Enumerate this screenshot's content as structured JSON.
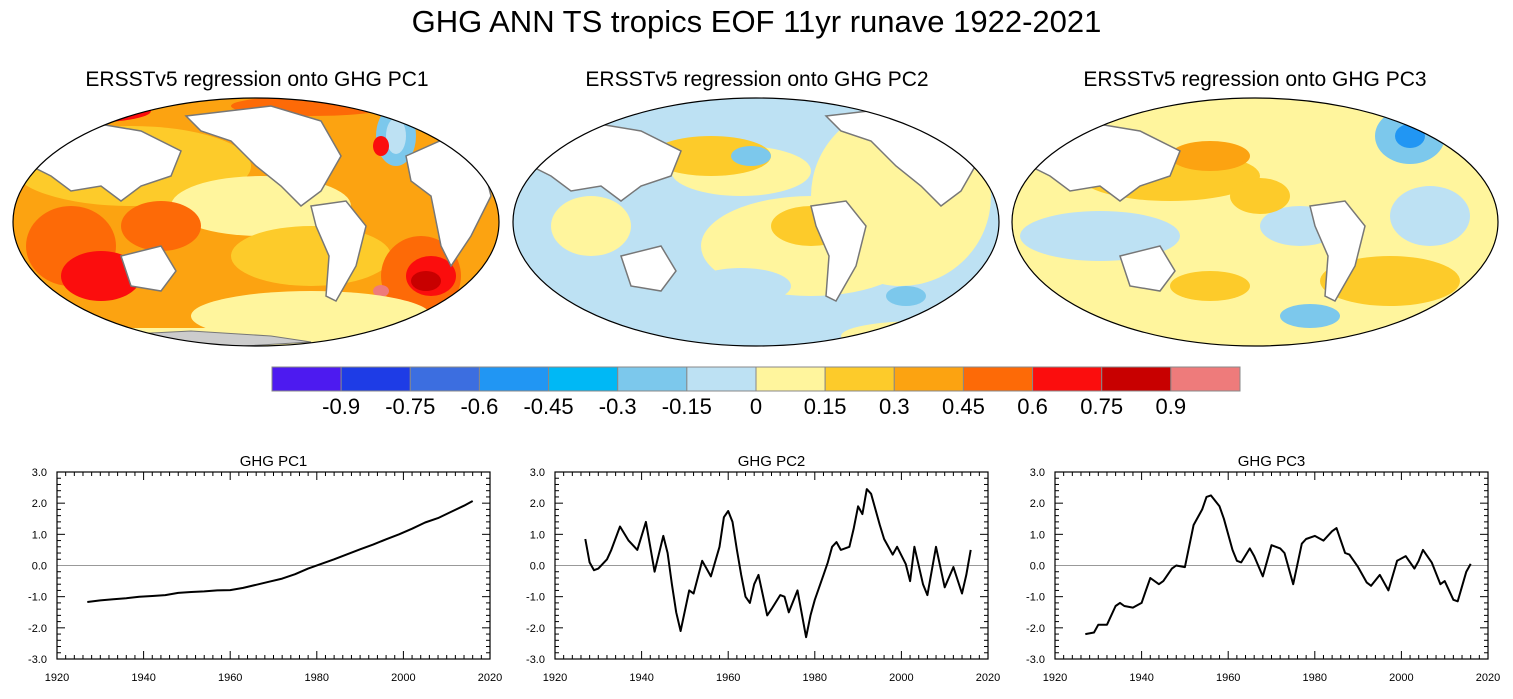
{
  "title": "GHG ANN TS tropics EOF 11yr runave 1922-2021",
  "maps": [
    {
      "title": "ERSSTv5 regression onto GHG PC1"
    },
    {
      "title": "ERSSTv5 regression onto GHG PC2"
    },
    {
      "title": "ERSSTv5 regression onto GHG PC3"
    }
  ],
  "colorbar": {
    "colors": [
      "#4d1af0",
      "#1e3ce6",
      "#3c6ee0",
      "#2196f3",
      "#00b8f5",
      "#7cc8ec",
      "#bde1f3",
      "#fff59d",
      "#fdcb2a",
      "#fca311",
      "#fd6a07",
      "#fb0d0d",
      "#c80000",
      "#ee7b7b"
    ],
    "labels": [
      "-0.9",
      "-0.75",
      "-0.6",
      "-0.45",
      "-0.3",
      "-0.15",
      "0",
      "0.15",
      "0.3",
      "0.45",
      "0.6",
      "0.75",
      "0.9"
    ]
  },
  "chart_data": [
    {
      "type": "line",
      "title": "GHG PC1",
      "xlim": [
        1920,
        2020
      ],
      "ylim": [
        -3.0,
        3.0
      ],
      "xticks": [
        "1920",
        "1940",
        "1960",
        "1980",
        "2000",
        "2020"
      ],
      "yticks": [
        "3.0",
        "2.0",
        "1.0",
        "0.0",
        "-1.0",
        "-2.0",
        "-3.0"
      ],
      "x": [
        1927,
        1930,
        1933,
        1936,
        1939,
        1942,
        1945,
        1948,
        1951,
        1954,
        1957,
        1960,
        1963,
        1966,
        1969,
        1972,
        1975,
        1978,
        1981,
        1984,
        1987,
        1990,
        1993,
        1996,
        1999,
        2002,
        2005,
        2008,
        2011,
        2014,
        2016
      ],
      "y": [
        -1.17,
        -1.12,
        -1.08,
        -1.05,
        -1.0,
        -0.98,
        -0.95,
        -0.88,
        -0.85,
        -0.83,
        -0.8,
        -0.79,
        -0.72,
        -0.62,
        -0.52,
        -0.42,
        -0.28,
        -0.1,
        0.05,
        0.2,
        0.36,
        0.52,
        0.67,
        0.84,
        1.0,
        1.18,
        1.38,
        1.52,
        1.72,
        1.92,
        2.07
      ]
    },
    {
      "type": "line",
      "title": "GHG PC2",
      "xlim": [
        1920,
        2020
      ],
      "ylim": [
        -3.0,
        3.0
      ],
      "xticks": [
        "1920",
        "1940",
        "1960",
        "1980",
        "2000",
        "2020"
      ],
      "yticks": [
        "3.0",
        "2.0",
        "1.0",
        "0.0",
        "-1.0",
        "-2.0",
        "-3.0"
      ],
      "x": [
        1927,
        1928,
        1929,
        1930,
        1932,
        1933,
        1935,
        1937,
        1939,
        1941,
        1943,
        1945,
        1946,
        1947,
        1948,
        1949,
        1951,
        1952,
        1954,
        1956,
        1958,
        1959,
        1960,
        1961,
        1962,
        1963,
        1964,
        1965,
        1966,
        1967,
        1969,
        1970,
        1972,
        1973,
        1974,
        1976,
        1978,
        1979,
        1980,
        1982,
        1983,
        1984,
        1985,
        1986,
        1988,
        1989,
        1990,
        1991,
        1992,
        1993,
        1995,
        1996,
        1998,
        1999,
        2001,
        2002,
        2003,
        2005,
        2006,
        2008,
        2010,
        2012,
        2014,
        2015,
        2016
      ],
      "y": [
        0.85,
        0.1,
        -0.15,
        -0.1,
        0.2,
        0.5,
        1.25,
        0.8,
        0.5,
        1.4,
        -0.2,
        0.95,
        0.4,
        -0.6,
        -1.5,
        -2.1,
        -0.8,
        -0.9,
        0.15,
        -0.35,
        0.6,
        1.55,
        1.75,
        1.4,
        0.5,
        -0.3,
        -1.0,
        -1.2,
        -0.6,
        -0.3,
        -1.6,
        -1.4,
        -0.95,
        -1.0,
        -1.5,
        -0.8,
        -2.3,
        -1.6,
        -1.1,
        -0.3,
        0.1,
        0.6,
        0.75,
        0.5,
        0.6,
        1.2,
        1.9,
        1.65,
        2.45,
        2.3,
        1.3,
        0.85,
        0.35,
        0.6,
        0.05,
        -0.5,
        0.6,
        -0.6,
        -0.95,
        0.6,
        -0.7,
        -0.05,
        -0.9,
        -0.3,
        0.5
      ]
    },
    {
      "type": "line",
      "title": "GHG PC3",
      "xlim": [
        1920,
        2020
      ],
      "ylim": [
        -3.0,
        3.0
      ],
      "xticks": [
        "1920",
        "1940",
        "1960",
        "1980",
        "2000",
        "2020"
      ],
      "yticks": [
        "3.0",
        "2.0",
        "1.0",
        "0.0",
        "-1.0",
        "-2.0",
        "-3.0"
      ],
      "x": [
        1927,
        1929,
        1930,
        1932,
        1934,
        1935,
        1936,
        1938,
        1940,
        1941,
        1942,
        1944,
        1945,
        1947,
        1948,
        1950,
        1952,
        1954,
        1955,
        1956,
        1958,
        1959,
        1961,
        1962,
        1963,
        1965,
        1966,
        1968,
        1970,
        1972,
        1973,
        1975,
        1977,
        1978,
        1980,
        1982,
        1984,
        1985,
        1987,
        1988,
        1990,
        1992,
        1993,
        1995,
        1997,
        1999,
        2001,
        2003,
        2004,
        2005,
        2007,
        2009,
        2010,
        2012,
        2013,
        2015,
        2016
      ],
      "y": [
        -2.2,
        -2.15,
        -1.9,
        -1.9,
        -1.3,
        -1.2,
        -1.3,
        -1.35,
        -1.2,
        -0.8,
        -0.4,
        -0.6,
        -0.5,
        -0.1,
        0.0,
        -0.05,
        1.3,
        1.8,
        2.2,
        2.25,
        1.9,
        1.5,
        0.5,
        0.15,
        0.1,
        0.55,
        0.3,
        -0.35,
        0.65,
        0.55,
        0.4,
        -0.6,
        0.7,
        0.85,
        0.95,
        0.8,
        1.1,
        1.2,
        0.4,
        0.35,
        -0.05,
        -0.55,
        -0.65,
        -0.3,
        -0.8,
        0.15,
        0.3,
        -0.1,
        0.15,
        0.5,
        0.1,
        -0.6,
        -0.5,
        -1.1,
        -1.15,
        -0.2,
        0.05
      ]
    }
  ]
}
